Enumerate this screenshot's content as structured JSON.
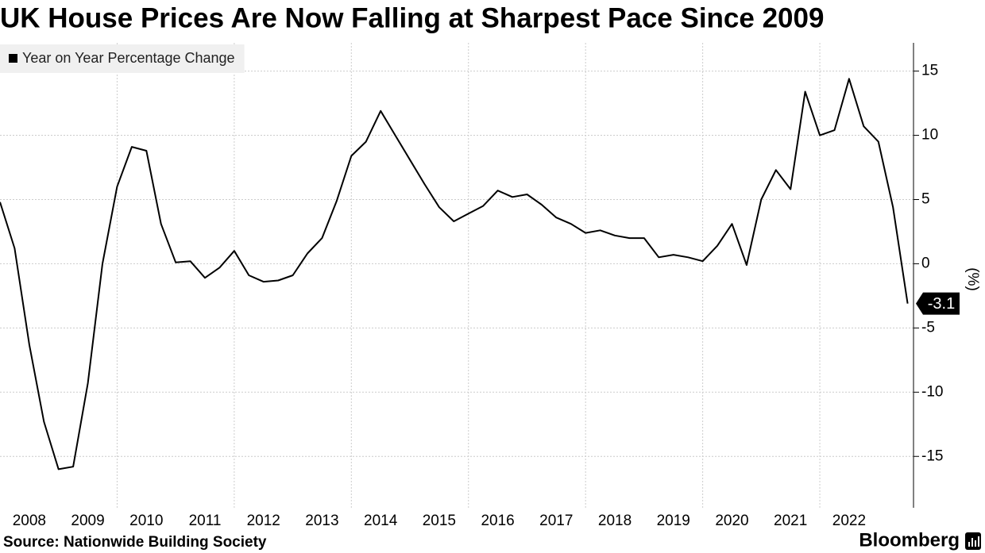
{
  "chart_data": {
    "type": "line",
    "title": "UK House Prices Are Now Falling at Sharpest Pace Since 2009",
    "source": "Source: Nationwide Building Society",
    "brand": "Bloomberg",
    "y_label": "(%)",
    "x": [
      2008,
      2008.25,
      2008.5,
      2008.75,
      2009,
      2009.25,
      2009.5,
      2009.75,
      2010,
      2010.25,
      2010.5,
      2010.75,
      2011,
      2011.25,
      2011.5,
      2011.75,
      2012,
      2012.25,
      2012.5,
      2012.75,
      2013,
      2013.25,
      2013.5,
      2013.75,
      2014,
      2014.25,
      2014.5,
      2014.75,
      2015,
      2015.25,
      2015.5,
      2015.75,
      2016,
      2016.25,
      2016.5,
      2016.75,
      2017,
      2017.25,
      2017.5,
      2017.75,
      2018,
      2018.25,
      2018.5,
      2018.75,
      2019,
      2019.25,
      2019.5,
      2019.75,
      2020,
      2020.25,
      2020.5,
      2020.75,
      2021,
      2021.25,
      2021.5,
      2021.75,
      2022,
      2022.25,
      2022.5,
      2022.75,
      2023,
      2023.25,
      2023.5
    ],
    "series": [
      {
        "name": "Year on Year Percentage Change",
        "color": "#000000",
        "values": [
          4.8,
          1.2,
          -6.3,
          -12.3,
          -16.0,
          -15.8,
          -9.3,
          0.0,
          6.0,
          9.1,
          8.8,
          3.1,
          0.1,
          0.2,
          -1.1,
          -0.3,
          1.0,
          -0.9,
          -1.4,
          -1.3,
          -0.9,
          0.8,
          2.0,
          4.9,
          8.4,
          9.5,
          11.9,
          10.0,
          8.1,
          6.2,
          4.4,
          3.3,
          3.9,
          4.5,
          5.7,
          5.2,
          5.4,
          4.6,
          3.6,
          3.1,
          2.4,
          2.6,
          2.2,
          2.0,
          2.0,
          0.5,
          0.7,
          0.5,
          0.2,
          1.4,
          3.1,
          -0.1,
          5.0,
          7.3,
          5.8,
          13.4,
          10.0,
          10.4,
          14.4,
          10.7,
          9.5,
          4.4,
          -3.1
        ]
      }
    ],
    "xlim": [
      2008,
      2023.6
    ],
    "xticks": [
      2008,
      2009,
      2010,
      2011,
      2012,
      2013,
      2014,
      2015,
      2016,
      2017,
      2018,
      2019,
      2020,
      2021,
      2022
    ],
    "ylim": [
      -19,
      17.2
    ],
    "yticks": [
      -15,
      -10,
      -5,
      0,
      5,
      10,
      15
    ],
    "grid": true,
    "legend": "top-left"
  }
}
